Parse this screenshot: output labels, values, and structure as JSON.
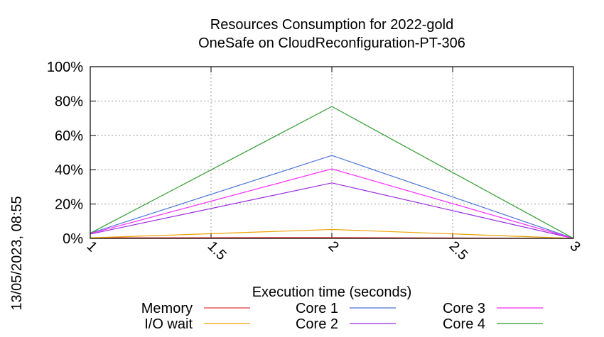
{
  "timestamp": "13/05/2023, 08:55",
  "chart_data": {
    "type": "line",
    "title": "Resources Consumption for 2022-gold",
    "subtitle": "OneSafe on CloudReconfiguration-PT-306",
    "xlabel": "Execution time (seconds)",
    "ylabel": "",
    "x": [
      1,
      2,
      3
    ],
    "xlim": [
      1,
      3
    ],
    "ylim": [
      0,
      100
    ],
    "xticks": [
      1,
      1.5,
      2,
      2.5,
      3
    ],
    "xtick_labels": [
      "1",
      "1.5",
      "2",
      "2.5",
      "3"
    ],
    "yticks": [
      0,
      20,
      40,
      60,
      80,
      100
    ],
    "ytick_labels": [
      "0%",
      "20%",
      "40%",
      "60%",
      "80%",
      "100%"
    ],
    "grid": true,
    "legend_position": "bottom",
    "series": [
      {
        "name": "Memory",
        "color": "#e8393a",
        "values": [
          0.3,
          0.5,
          0
        ]
      },
      {
        "name": "I/O wait",
        "color": "#f0a000",
        "values": [
          0.3,
          5.2,
          0
        ]
      },
      {
        "name": "Core 1",
        "color": "#4a72d8",
        "values": [
          3,
          48.3,
          0
        ]
      },
      {
        "name": "Core 2",
        "color": "#9a2be0",
        "values": [
          2.5,
          32.3,
          0
        ]
      },
      {
        "name": "Core 3",
        "color": "#ff2bff",
        "values": [
          2.8,
          40.5,
          0
        ]
      },
      {
        "name": "Core 4",
        "color": "#2e9a2e",
        "values": [
          3,
          76.8,
          0
        ]
      }
    ]
  }
}
